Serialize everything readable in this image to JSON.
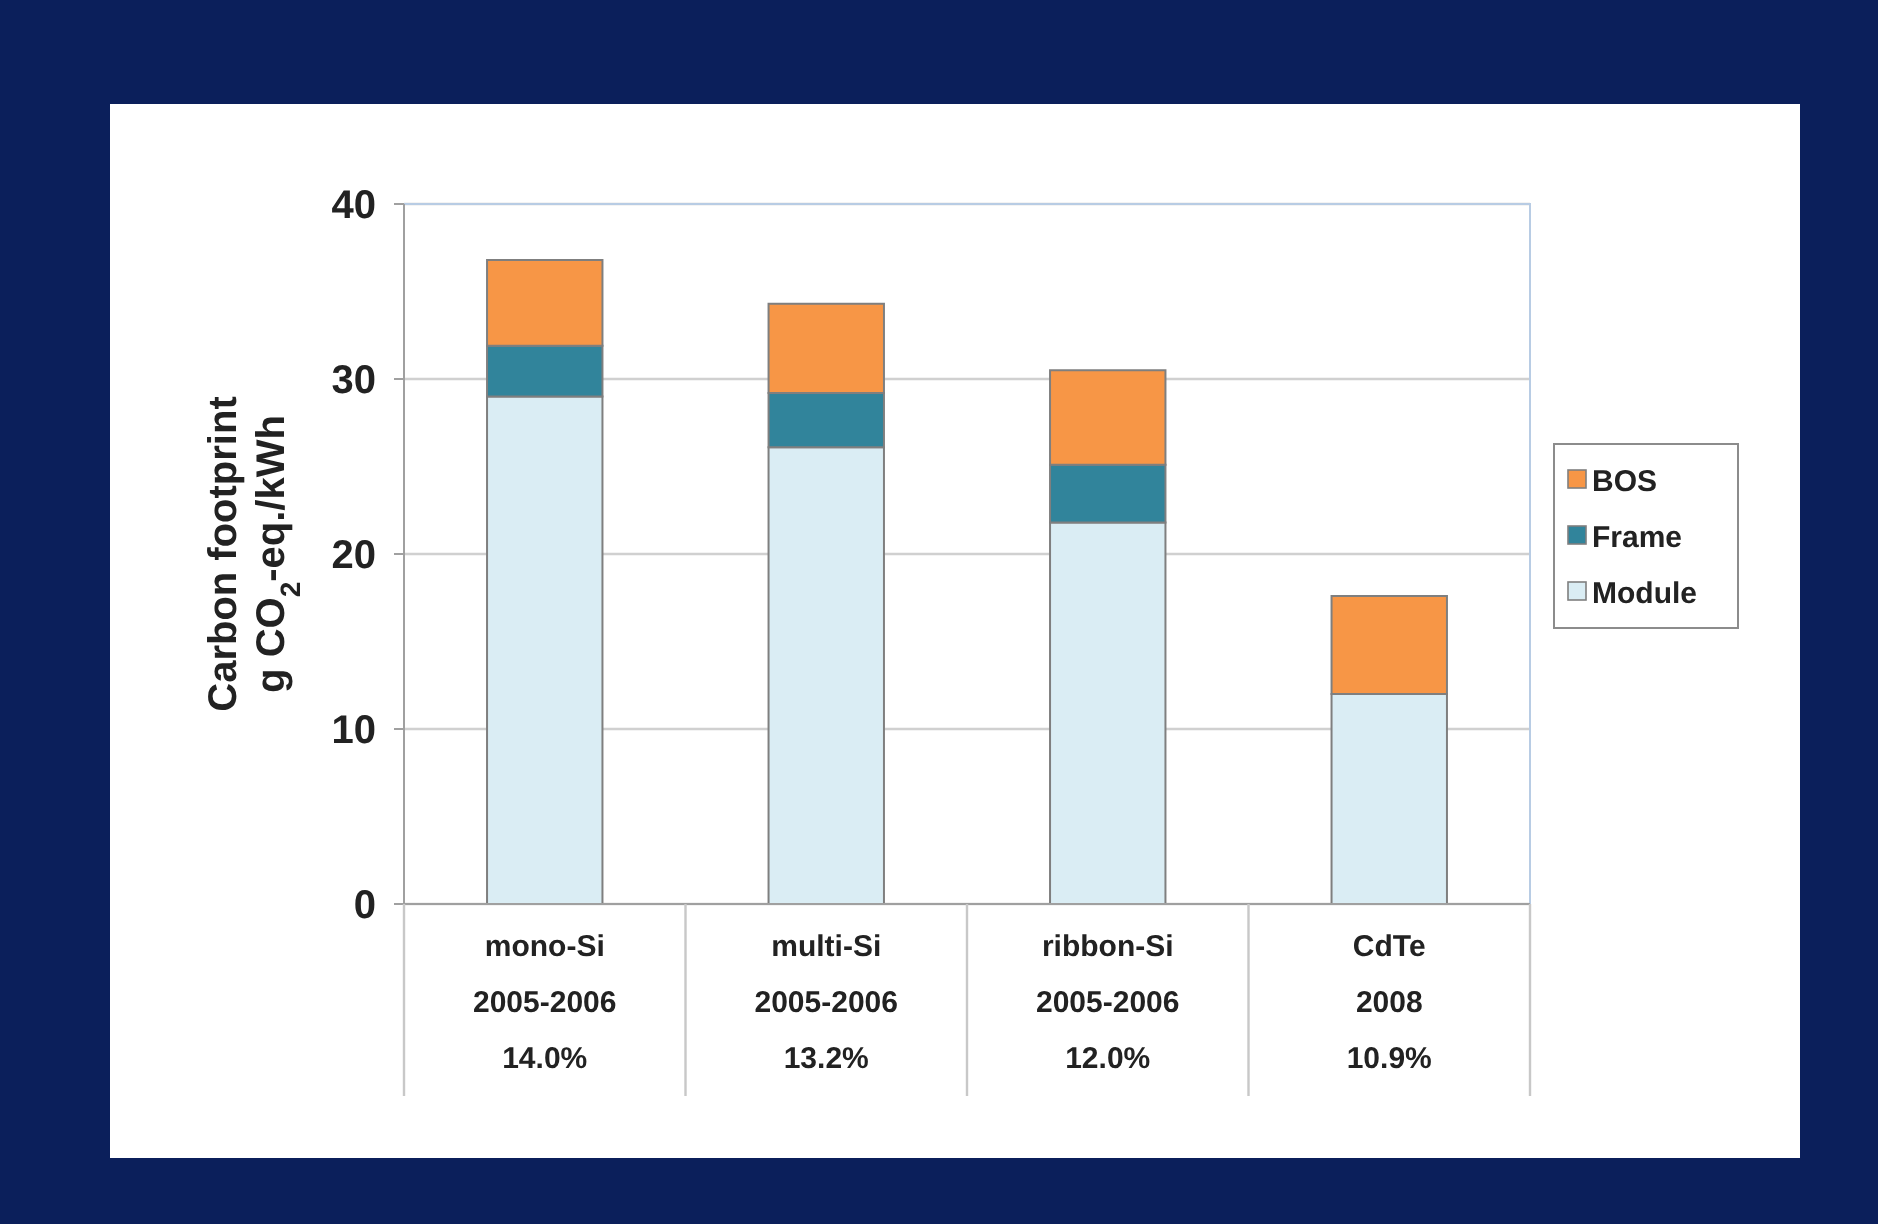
{
  "chart_data": {
    "type": "bar",
    "ylabel": "Carbon footprint\ng CO$_{2}$-eq./kWh",
    "categories": [
      "mono-Si\n2005-2006\n14.0%",
      "multi-Si\n2005-2006\n13.2%",
      "ribbon-Si\n2005-2006\n12.0%",
      "CdTe\n2008\n10.9%"
    ],
    "stacked": true,
    "series": [
      {
        "name": "Module",
        "color": "#daedf4",
        "values": [
          29.0,
          26.1,
          21.8,
          12.0
        ]
      },
      {
        "name": "Frame",
        "color": "#31849b",
        "values": [
          2.9,
          3.1,
          3.3,
          null
        ]
      },
      {
        "name": "BOS",
        "color": "#f79646",
        "values": [
          4.9,
          5.1,
          5.4,
          5.6
        ]
      }
    ],
    "ylim": [
      0,
      40
    ],
    "yticks": [
      0,
      10,
      20,
      30,
      40
    ],
    "grid": "y",
    "legend": "right"
  }
}
